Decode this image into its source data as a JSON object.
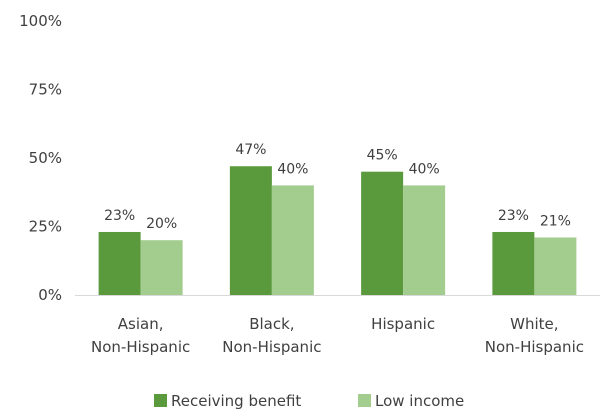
{
  "chart_data": {
    "type": "bar",
    "title": "",
    "xlabel": "",
    "ylabel": "",
    "ylim": [
      0,
      100
    ],
    "y_ticks": [
      "0%",
      "25%",
      "50%",
      "75%",
      "100%"
    ],
    "y_tick_values": [
      0,
      25,
      50,
      75,
      100
    ],
    "grid": false,
    "legend_position": "bottom",
    "categories": [
      [
        "Asian,",
        "Non-Hispanic"
      ],
      [
        "Black,",
        "Non-Hispanic"
      ],
      [
        "Hispanic"
      ],
      [
        "White,",
        "Non-Hispanic"
      ]
    ],
    "series": [
      {
        "name": "Receiving benefit",
        "color": "#5b9a3c",
        "values": [
          23,
          47,
          45,
          23
        ],
        "labels": [
          "23%",
          "47%",
          "45%",
          "23%"
        ]
      },
      {
        "name": "Low income",
        "color": "#a3cc8f",
        "values": [
          20,
          40,
          40,
          21
        ],
        "labels": [
          "20%",
          "40%",
          "40%",
          "21%"
        ]
      }
    ]
  }
}
